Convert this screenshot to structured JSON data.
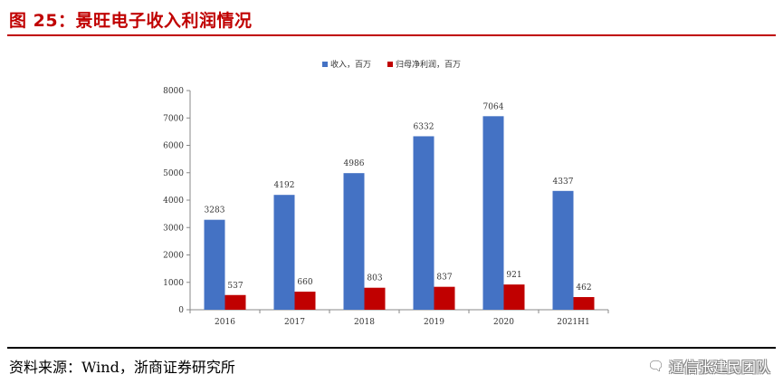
{
  "header": {
    "title": "图 25：景旺电子收入利润情况"
  },
  "footer": {
    "source": "资料来源：Wind，浙商证券研究所",
    "watermark": "通信张建民团队"
  },
  "colors": {
    "revenue": "#4472c4",
    "profit": "#c00000",
    "title": "#c00000"
  },
  "chart_data": {
    "type": "bar",
    "categories": [
      "2016",
      "2017",
      "2018",
      "2019",
      "2020",
      "2021H1"
    ],
    "series": [
      {
        "name": "收入，百万",
        "values": [
          3283,
          4192,
          4986,
          6332,
          7064,
          4337
        ],
        "color": "#4472c4"
      },
      {
        "name": "归母净利润，百万",
        "values": [
          537,
          660,
          803,
          837,
          921,
          462
        ],
        "color": "#c00000"
      }
    ],
    "yticks": [
      "0",
      "1000",
      "2000",
      "3000",
      "4000",
      "5000",
      "6000",
      "7000",
      "8000"
    ],
    "ylim": [
      0,
      8000
    ],
    "legend_position": "top-center",
    "grid": false
  }
}
